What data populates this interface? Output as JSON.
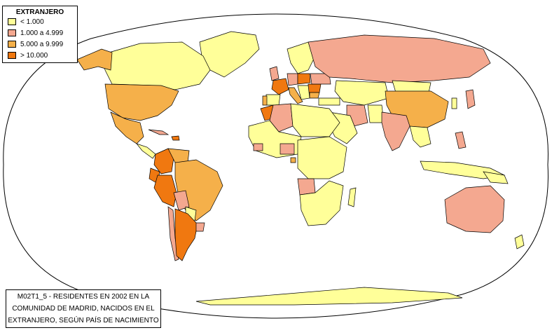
{
  "legend": {
    "title": "EXTRANJERO",
    "items": [
      {
        "label": "< 1.000",
        "color": "#ffff99"
      },
      {
        "label": "1.000 a 4.999",
        "color": "#f4a890"
      },
      {
        "label": "5.000 a 9.999",
        "color": "#f5b04a"
      },
      {
        "label": "> 10.000",
        "color": "#f07810"
      }
    ]
  },
  "caption": {
    "line1": "M02T1_5 - RESIDENTES EN 2002 EN LA",
    "line2": "COMUNIDAD DE MADRID, NACIDOS EN EL",
    "line3": "EXTRANJERO, SEGÚN PAÍS DE NACIMIENTO"
  },
  "colors": {
    "background": "#ffffff",
    "outline": "#000000",
    "unclassified": "#ffffff"
  }
}
